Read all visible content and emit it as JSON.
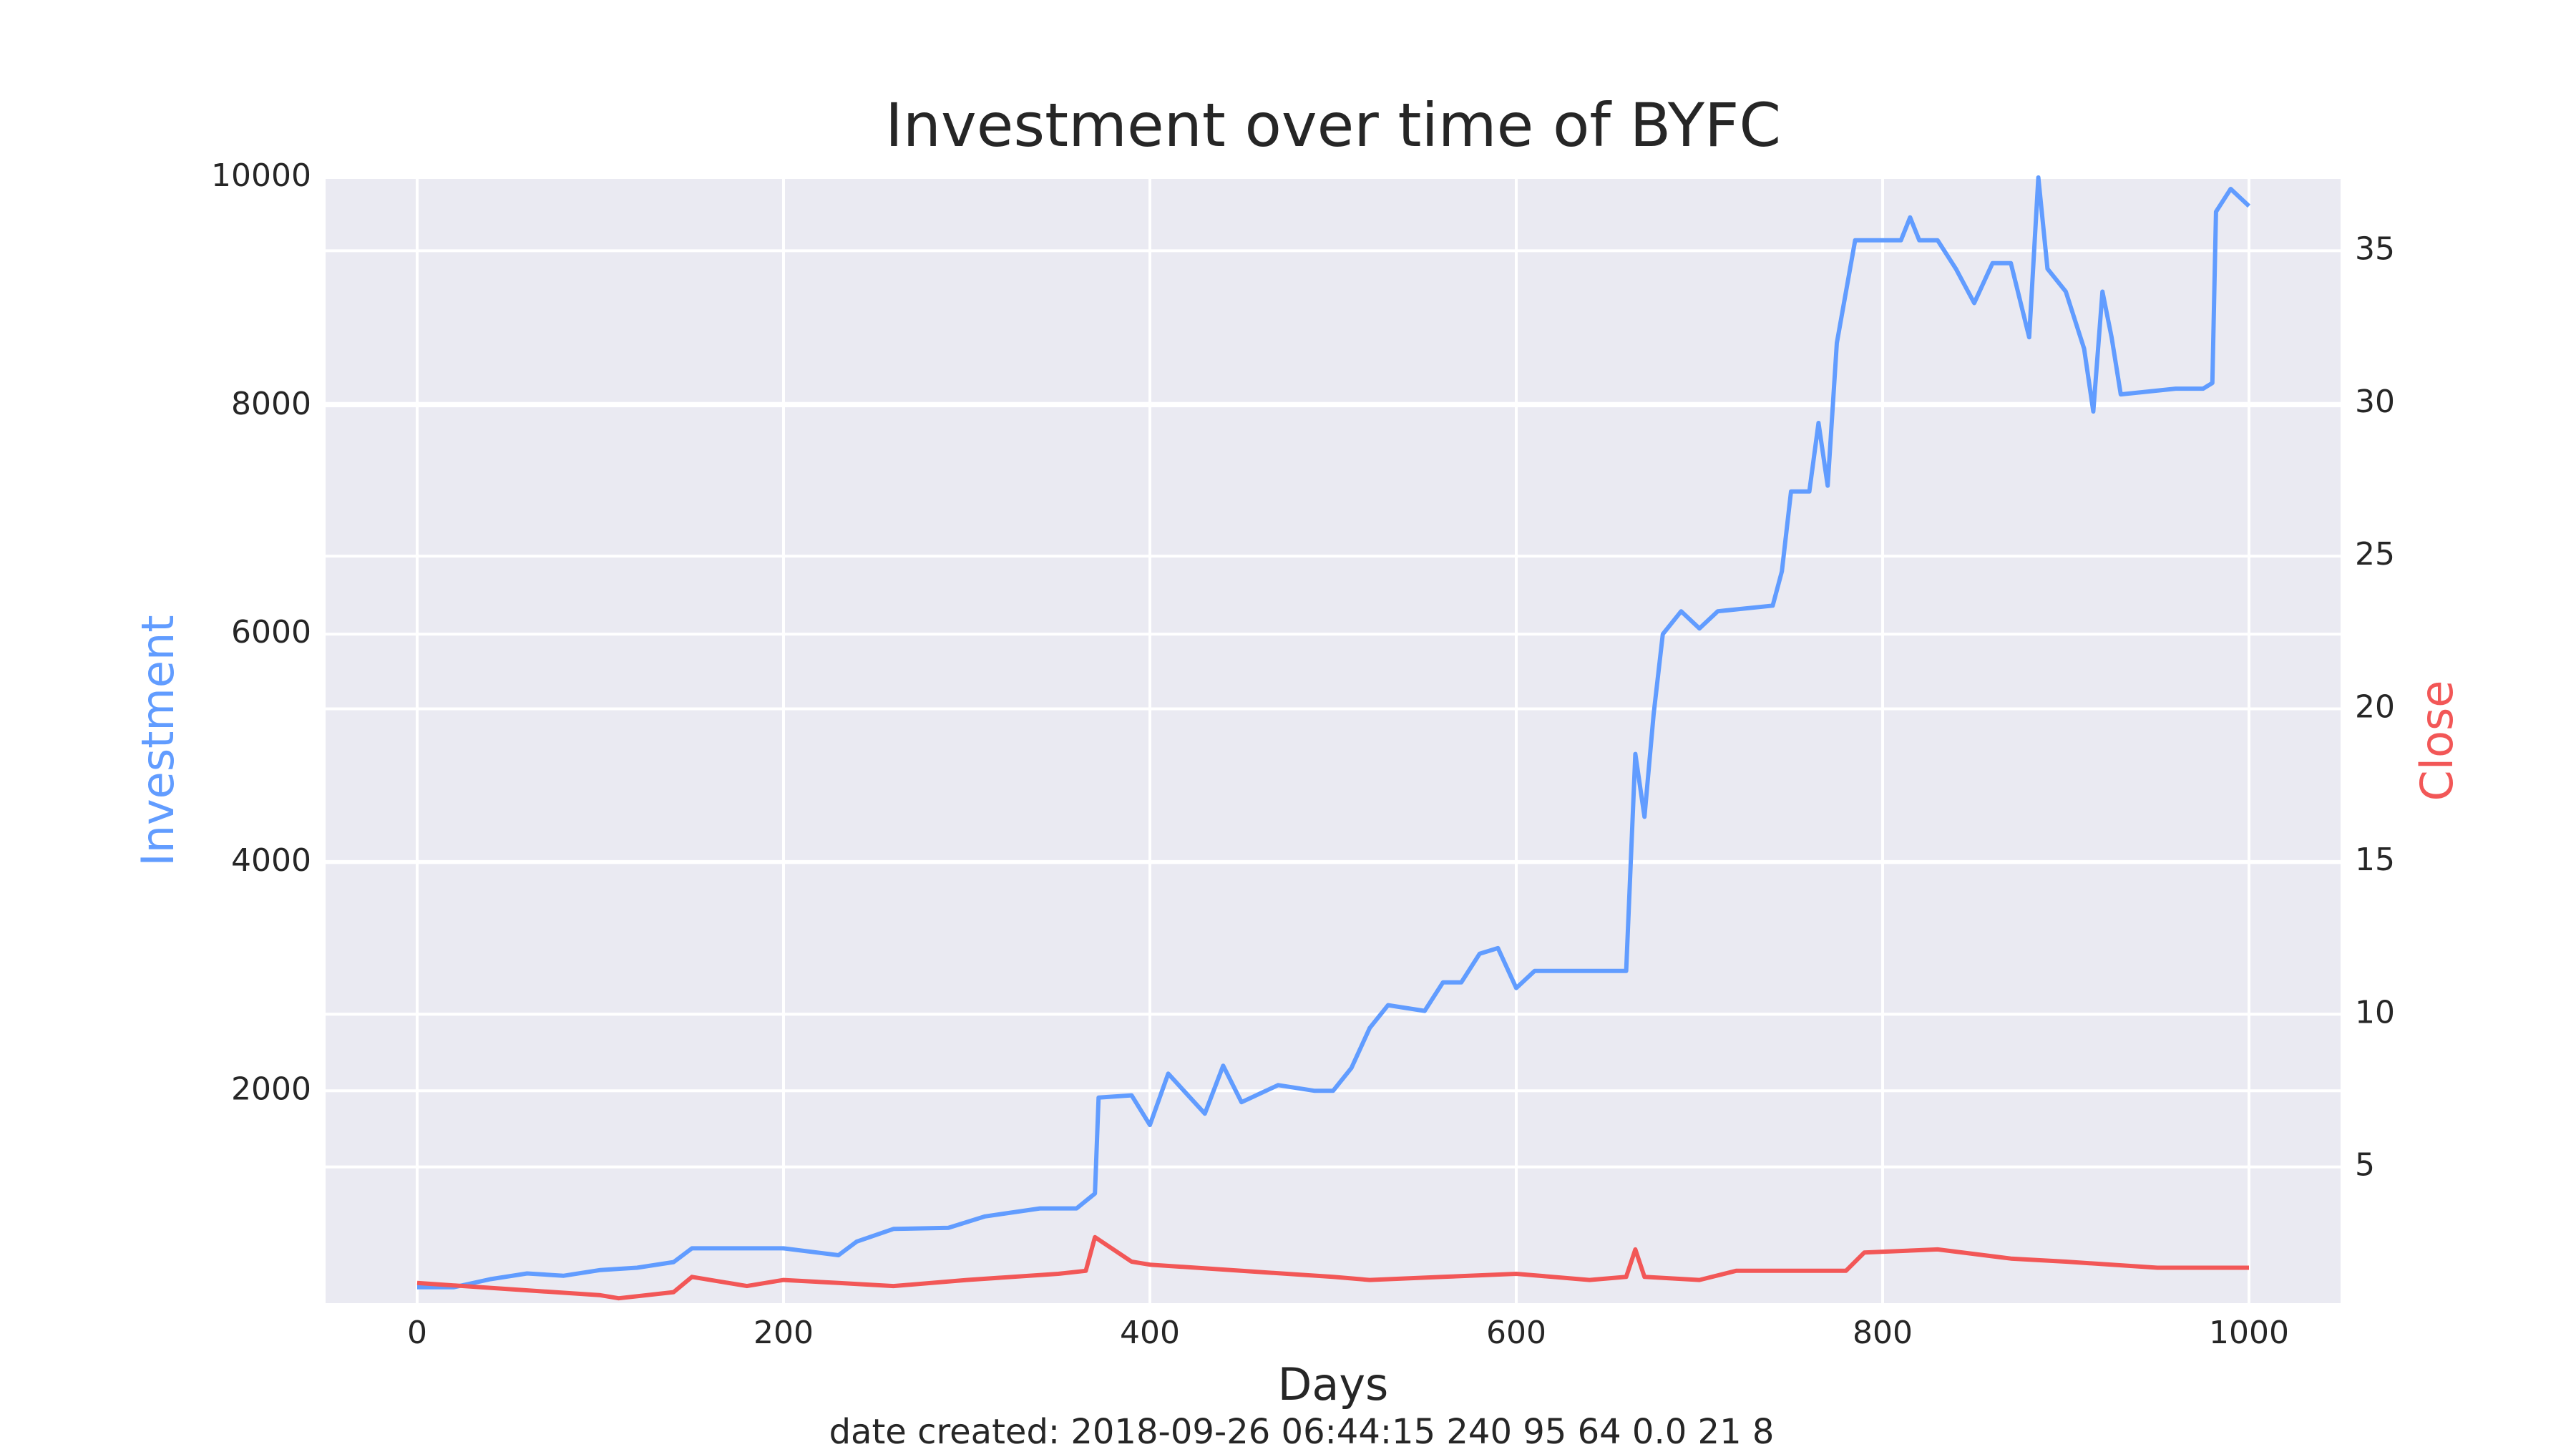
{
  "chart_data": {
    "type": "line",
    "title": "Investment over time of BYFC",
    "xlabel": "Days",
    "ylabel": "Investment",
    "y2label": "Close",
    "caption": "date created: 2018-09-26 06:44:15 240 95 64 0.0 21 8",
    "xlim": [
      -50,
      1050
    ],
    "xticks": [
      0,
      200,
      400,
      600,
      800,
      1000
    ],
    "ylim": [
      140,
      10000
    ],
    "yticks": [
      2000,
      4000,
      6000,
      8000,
      10000
    ],
    "y2lim": [
      0.54,
      37.4
    ],
    "y2ticks": [
      5,
      10,
      15,
      20,
      25,
      30,
      35
    ],
    "grid": true,
    "series": [
      {
        "name": "Investment",
        "color": "#619cff",
        "axis": "y",
        "x": [
          0,
          20,
          40,
          60,
          80,
          100,
          120,
          140,
          150,
          180,
          200,
          230,
          240,
          260,
          290,
          310,
          340,
          360,
          370,
          372,
          390,
          400,
          410,
          430,
          440,
          450,
          470,
          490,
          500,
          510,
          520,
          530,
          550,
          560,
          570,
          580,
          590,
          600,
          610,
          620,
          640,
          660,
          665,
          670,
          675,
          680,
          690,
          700,
          710,
          740,
          745,
          750,
          760,
          765,
          770,
          775,
          785,
          810,
          815,
          820,
          830,
          840,
          850,
          860,
          870,
          880,
          885,
          890,
          900,
          910,
          915,
          920,
          925,
          930,
          960,
          975,
          980,
          982,
          990,
          1000
        ],
        "values": [
          280,
          280,
          350,
          400,
          380,
          430,
          450,
          500,
          620,
          620,
          620,
          560,
          680,
          790,
          800,
          900,
          970,
          970,
          1100,
          1940,
          1960,
          1700,
          2150,
          1800,
          2220,
          1900,
          2050,
          2000,
          2000,
          2200,
          2550,
          2750,
          2700,
          2950,
          2950,
          3200,
          3250,
          2900,
          3050,
          3050,
          3050,
          3050,
          4950,
          4400,
          5300,
          6000,
          6200,
          6050,
          6200,
          6250,
          6550,
          7250,
          7250,
          7850,
          7300,
          8550,
          9450,
          9450,
          9650,
          9450,
          9450,
          9200,
          8900,
          9250,
          9250,
          8600,
          10000,
          9200,
          9000,
          8500,
          7950,
          9000,
          8600,
          8100,
          8150,
          8150,
          8200,
          9700,
          9900,
          9750
        ]
      },
      {
        "name": "Close",
        "color": "#f25757",
        "axis": "y2",
        "x": [
          0,
          50,
          100,
          110,
          140,
          150,
          180,
          200,
          230,
          260,
          300,
          350,
          365,
          370,
          390,
          400,
          450,
          500,
          520,
          560,
          600,
          640,
          660,
          665,
          670,
          700,
          720,
          780,
          790,
          830,
          870,
          900,
          950,
          1000
        ],
        "values": [
          1.2,
          1.0,
          0.8,
          0.7,
          0.9,
          1.4,
          1.1,
          1.3,
          1.2,
          1.1,
          1.3,
          1.5,
          1.6,
          2.7,
          1.9,
          1.8,
          1.6,
          1.4,
          1.3,
          1.4,
          1.5,
          1.3,
          1.4,
          2.3,
          1.4,
          1.3,
          1.6,
          1.6,
          2.2,
          2.3,
          2.0,
          1.9,
          1.7,
          1.7
        ]
      }
    ]
  }
}
